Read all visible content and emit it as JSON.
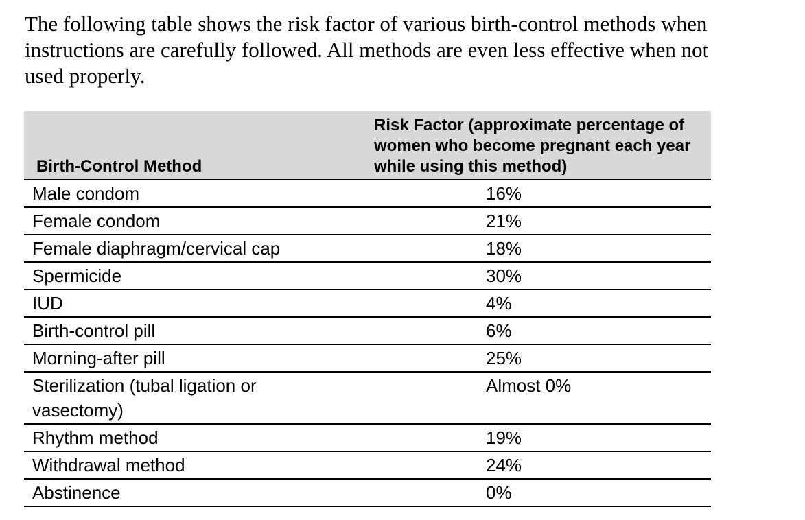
{
  "intro_text": "The following table shows the risk factor of various birth-control methods when instructions are carefully followed. All methods are even less effective when not used properly.",
  "table": {
    "headers": {
      "method": "Birth-Control Method",
      "risk": "Risk Factor (approximate percentage of women who become pregnant each year while using this method)"
    },
    "rows": [
      {
        "method": "Male condom",
        "risk": "16%"
      },
      {
        "method": "Female condom",
        "risk": "21%"
      },
      {
        "method": "Female diaphragm/cervical cap",
        "risk": "18%"
      },
      {
        "method": "Spermicide",
        "risk": "30%"
      },
      {
        "method": "IUD",
        "risk": "4%"
      },
      {
        "method": "Birth-control pill",
        "risk": "6%"
      },
      {
        "method": "Morning-after pill",
        "risk": "25%"
      },
      {
        "method": "Sterilization (tubal ligation or vasectomy)",
        "risk": "Almost 0%"
      },
      {
        "method": "Rhythm method",
        "risk": "19%"
      },
      {
        "method": "Withdrawal method",
        "risk": "24%"
      },
      {
        "method": "Abstinence",
        "risk": "0%"
      }
    ]
  }
}
